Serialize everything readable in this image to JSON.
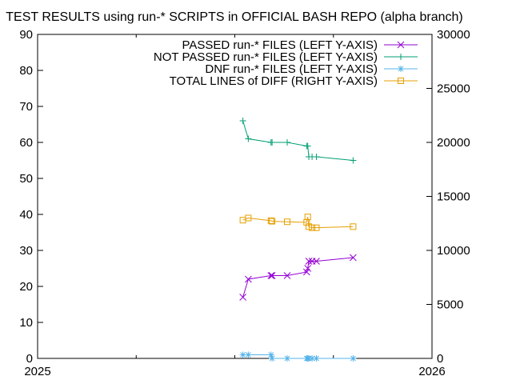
{
  "chart_data": {
    "type": "line",
    "title": "TEST RESULTS using run-* SCRIPTS in OFFICIAL BASH REPO (alpha branch)",
    "xlabel": "",
    "ylabel": "",
    "y2label": "",
    "xlim": [
      "2025-01-01",
      "2026-01-01"
    ],
    "ylim": [
      0,
      90
    ],
    "y2lim": [
      0,
      30000
    ],
    "x_ticks": [
      "2025",
      "2026"
    ],
    "y_ticks": [
      "0",
      "10",
      "20",
      "30",
      "40",
      "50",
      "60",
      "70",
      "80",
      "90"
    ],
    "y2_ticks": [
      "0",
      "5000",
      "10000",
      "15000",
      "20000",
      "25000",
      "30000"
    ],
    "grid": false,
    "legend_position": "top-right",
    "x": [
      "2025-07-10",
      "2025-07-15",
      "2025-08-05",
      "2025-08-06",
      "2025-08-20",
      "2025-09-07",
      "2025-09-08",
      "2025-09-09",
      "2025-09-12",
      "2025-09-16",
      "2025-10-20"
    ],
    "series": [
      {
        "name": "PASSED run-* FILES (LEFT Y-AXIS)",
        "axis": "left",
        "marker": "x",
        "color": "#9400d3",
        "values": [
          17,
          22,
          23,
          23,
          23,
          24,
          25,
          27,
          27,
          27,
          28
        ]
      },
      {
        "name": "NOT PASSED run-* FILES (LEFT Y-AXIS)",
        "axis": "left",
        "marker": "plus",
        "color": "#009e73",
        "values": [
          66,
          61,
          60,
          60,
          60,
          59,
          59,
          56,
          56,
          56,
          55
        ]
      },
      {
        "name": "DNF run-* FILES (LEFT Y-AXIS)",
        "axis": "left",
        "marker": "star",
        "color": "#56b4e9",
        "values": [
          1,
          1,
          1,
          0,
          0,
          0,
          0,
          0,
          0,
          0,
          0
        ]
      },
      {
        "name": "TOTAL LINES of DIFF (RIGHT Y-AXIS)",
        "axis": "right",
        "marker": "square",
        "color": "#e69f00",
        "values": [
          12800,
          13000,
          12750,
          12700,
          12650,
          12600,
          13100,
          12200,
          12100,
          12100,
          12200
        ]
      }
    ]
  }
}
